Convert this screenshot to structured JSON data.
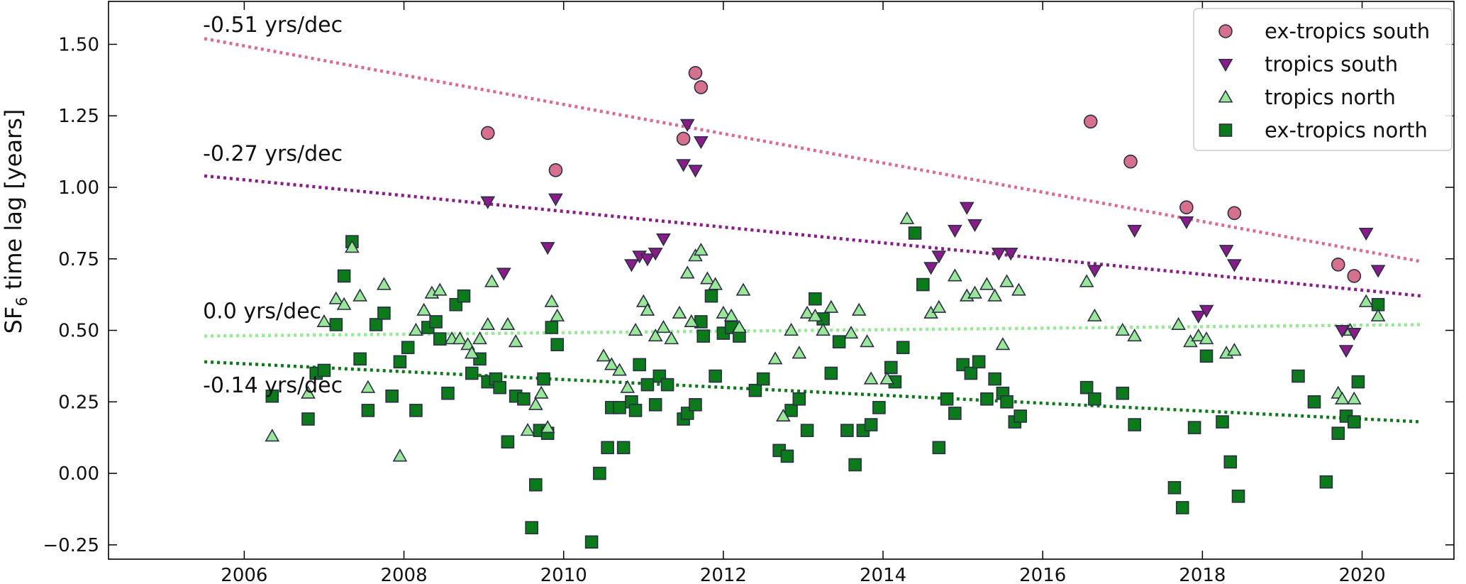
{
  "chart_data": {
    "type": "scatter",
    "ylabel": {
      "main": "SF",
      "sub": "6",
      "rest": " time lag [years]"
    },
    "xlim": [
      2004.3,
      2021.15
    ],
    "ylim": [
      -0.3,
      1.65
    ],
    "xticks": [
      2006,
      2008,
      2010,
      2012,
      2014,
      2016,
      2018,
      2020
    ],
    "yticks": [
      -0.25,
      0.0,
      0.25,
      0.5,
      0.75,
      1.0,
      1.25,
      1.5
    ],
    "ytick_labels": [
      "−0.25",
      "0.00",
      "0.25",
      "0.50",
      "0.75",
      "1.00",
      "1.25",
      "1.50"
    ],
    "legend_position": "top-right",
    "series": [
      {
        "name": "ex-tropics south",
        "marker": "circle",
        "color": "#d6708c",
        "points": [
          [
            2009.05,
            1.19
          ],
          [
            2009.9,
            1.06
          ],
          [
            2011.5,
            1.17
          ],
          [
            2011.65,
            1.4
          ],
          [
            2011.72,
            1.35
          ],
          [
            2016.6,
            1.23
          ],
          [
            2017.1,
            1.09
          ],
          [
            2017.8,
            0.93
          ],
          [
            2018.4,
            0.91
          ],
          [
            2019.7,
            0.73
          ],
          [
            2019.9,
            0.69
          ]
        ]
      },
      {
        "name": "tropics south",
        "marker": "triangle-down",
        "color": "#8b1a8b",
        "points": [
          [
            2009.05,
            0.95
          ],
          [
            2009.25,
            0.7
          ],
          [
            2009.8,
            0.79
          ],
          [
            2009.9,
            0.96
          ],
          [
            2010.85,
            0.73
          ],
          [
            2010.95,
            0.76
          ],
          [
            2011.05,
            0.75
          ],
          [
            2011.15,
            0.77
          ],
          [
            2011.25,
            0.82
          ],
          [
            2011.5,
            1.08
          ],
          [
            2011.55,
            1.22
          ],
          [
            2011.65,
            1.06
          ],
          [
            2011.72,
            1.16
          ],
          [
            2014.6,
            0.72
          ],
          [
            2014.7,
            0.76
          ],
          [
            2014.9,
            0.85
          ],
          [
            2015.05,
            0.93
          ],
          [
            2015.15,
            0.87
          ],
          [
            2015.45,
            0.77
          ],
          [
            2015.6,
            0.77
          ],
          [
            2016.65,
            0.71
          ],
          [
            2017.15,
            0.85
          ],
          [
            2017.8,
            0.88
          ],
          [
            2018.3,
            0.78
          ],
          [
            2018.4,
            0.73
          ],
          [
            2017.95,
            0.55
          ],
          [
            2018.05,
            0.57
          ],
          [
            2019.75,
            0.5
          ],
          [
            2019.8,
            0.43
          ],
          [
            2019.9,
            0.49
          ],
          [
            2020.05,
            0.84
          ],
          [
            2020.2,
            0.71
          ]
        ]
      },
      {
        "name": "tropics north",
        "marker": "triangle-up",
        "color": "#98e898",
        "points": [
          [
            2006.35,
            0.13
          ],
          [
            2006.8,
            0.28
          ],
          [
            2007.0,
            0.53
          ],
          [
            2007.15,
            0.61
          ],
          [
            2007.25,
            0.59
          ],
          [
            2007.35,
            0.79
          ],
          [
            2007.45,
            0.62
          ],
          [
            2007.55,
            0.3
          ],
          [
            2007.75,
            0.66
          ],
          [
            2007.95,
            0.06
          ],
          [
            2008.15,
            0.5
          ],
          [
            2008.25,
            0.57
          ],
          [
            2008.35,
            0.63
          ],
          [
            2008.45,
            0.64
          ],
          [
            2008.6,
            0.47
          ],
          [
            2008.7,
            0.47
          ],
          [
            2008.8,
            0.45
          ],
          [
            2008.85,
            0.42
          ],
          [
            2008.95,
            0.47
          ],
          [
            2009.05,
            0.52
          ],
          [
            2009.1,
            0.67
          ],
          [
            2009.3,
            0.52
          ],
          [
            2009.4,
            0.46
          ],
          [
            2009.55,
            0.15
          ],
          [
            2009.65,
            0.24
          ],
          [
            2009.72,
            0.28
          ],
          [
            2009.8,
            0.16
          ],
          [
            2009.85,
            0.6
          ],
          [
            2009.92,
            0.55
          ],
          [
            2010.5,
            0.41
          ],
          [
            2010.6,
            0.38
          ],
          [
            2010.7,
            0.36
          ],
          [
            2010.8,
            0.3
          ],
          [
            2010.9,
            0.5
          ],
          [
            2011.0,
            0.6
          ],
          [
            2011.05,
            0.57
          ],
          [
            2011.15,
            0.48
          ],
          [
            2011.25,
            0.51
          ],
          [
            2011.35,
            0.47
          ],
          [
            2011.45,
            0.56
          ],
          [
            2011.55,
            0.7
          ],
          [
            2011.6,
            0.53
          ],
          [
            2011.65,
            0.76
          ],
          [
            2011.72,
            0.78
          ],
          [
            2011.8,
            0.68
          ],
          [
            2011.9,
            0.66
          ],
          [
            2012.0,
            0.56
          ],
          [
            2012.1,
            0.55
          ],
          [
            2012.2,
            0.51
          ],
          [
            2012.25,
            0.64
          ],
          [
            2012.65,
            0.4
          ],
          [
            2012.75,
            0.2
          ],
          [
            2012.85,
            0.5
          ],
          [
            2012.95,
            0.42
          ],
          [
            2013.05,
            0.56
          ],
          [
            2013.15,
            0.55
          ],
          [
            2013.25,
            0.5
          ],
          [
            2013.35,
            0.58
          ],
          [
            2013.6,
            0.49
          ],
          [
            2013.7,
            0.57
          ],
          [
            2013.8,
            0.46
          ],
          [
            2013.85,
            0.33
          ],
          [
            2014.05,
            0.33
          ],
          [
            2014.3,
            0.89
          ],
          [
            2014.6,
            0.56
          ],
          [
            2014.7,
            0.58
          ],
          [
            2014.9,
            0.69
          ],
          [
            2015.05,
            0.62
          ],
          [
            2015.15,
            0.63
          ],
          [
            2015.3,
            0.66
          ],
          [
            2015.4,
            0.62
          ],
          [
            2015.5,
            0.45
          ],
          [
            2015.55,
            0.67
          ],
          [
            2015.7,
            0.64
          ],
          [
            2016.55,
            0.67
          ],
          [
            2016.65,
            0.55
          ],
          [
            2017.0,
            0.5
          ],
          [
            2017.15,
            0.48
          ],
          [
            2017.7,
            0.52
          ],
          [
            2017.85,
            0.46
          ],
          [
            2017.95,
            0.48
          ],
          [
            2018.05,
            0.47
          ],
          [
            2018.3,
            0.42
          ],
          [
            2018.4,
            0.43
          ],
          [
            2019.7,
            0.28
          ],
          [
            2019.75,
            0.26
          ],
          [
            2019.85,
            0.5
          ],
          [
            2019.9,
            0.26
          ],
          [
            2020.05,
            0.6
          ],
          [
            2020.2,
            0.55
          ]
        ]
      },
      {
        "name": "ex-tropics north",
        "marker": "square",
        "color": "#0b7a18",
        "points": [
          [
            2006.35,
            0.27
          ],
          [
            2006.8,
            0.19
          ],
          [
            2006.9,
            0.35
          ],
          [
            2007.0,
            0.36
          ],
          [
            2007.15,
            0.52
          ],
          [
            2007.25,
            0.69
          ],
          [
            2007.35,
            0.81
          ],
          [
            2007.45,
            0.4
          ],
          [
            2007.55,
            0.22
          ],
          [
            2007.65,
            0.52
          ],
          [
            2007.75,
            0.56
          ],
          [
            2007.85,
            0.27
          ],
          [
            2007.95,
            0.39
          ],
          [
            2008.05,
            0.44
          ],
          [
            2008.15,
            0.22
          ],
          [
            2008.3,
            0.51
          ],
          [
            2008.4,
            0.53
          ],
          [
            2008.45,
            0.47
          ],
          [
            2008.55,
            0.28
          ],
          [
            2008.65,
            0.59
          ],
          [
            2008.75,
            0.62
          ],
          [
            2008.85,
            0.35
          ],
          [
            2008.95,
            0.4
          ],
          [
            2009.05,
            0.32
          ],
          [
            2009.15,
            0.33
          ],
          [
            2009.2,
            0.3
          ],
          [
            2009.3,
            0.11
          ],
          [
            2009.4,
            0.27
          ],
          [
            2009.5,
            0.26
          ],
          [
            2009.6,
            -0.19
          ],
          [
            2009.65,
            -0.04
          ],
          [
            2009.7,
            0.15
          ],
          [
            2009.75,
            0.33
          ],
          [
            2009.8,
            0.14
          ],
          [
            2009.85,
            0.51
          ],
          [
            2009.92,
            0.45
          ],
          [
            2010.35,
            -0.24
          ],
          [
            2010.45,
            0.0
          ],
          [
            2010.55,
            0.09
          ],
          [
            2010.6,
            0.23
          ],
          [
            2010.7,
            0.23
          ],
          [
            2010.75,
            0.09
          ],
          [
            2010.85,
            0.25
          ],
          [
            2010.9,
            0.22
          ],
          [
            2010.95,
            0.38
          ],
          [
            2011.05,
            0.31
          ],
          [
            2011.15,
            0.24
          ],
          [
            2011.2,
            0.34
          ],
          [
            2011.3,
            0.31
          ],
          [
            2011.5,
            0.19
          ],
          [
            2011.55,
            0.21
          ],
          [
            2011.65,
            0.24
          ],
          [
            2011.72,
            0.53
          ],
          [
            2011.75,
            0.48
          ],
          [
            2011.85,
            0.62
          ],
          [
            2011.9,
            0.34
          ],
          [
            2012.0,
            0.49
          ],
          [
            2012.1,
            0.51
          ],
          [
            2012.2,
            0.48
          ],
          [
            2012.4,
            0.29
          ],
          [
            2012.5,
            0.33
          ],
          [
            2012.7,
            0.08
          ],
          [
            2012.8,
            0.06
          ],
          [
            2012.85,
            0.22
          ],
          [
            2012.95,
            0.26
          ],
          [
            2013.05,
            0.15
          ],
          [
            2013.15,
            0.61
          ],
          [
            2013.25,
            0.54
          ],
          [
            2013.35,
            0.35
          ],
          [
            2013.45,
            0.46
          ],
          [
            2013.55,
            0.15
          ],
          [
            2013.65,
            0.03
          ],
          [
            2013.75,
            0.15
          ],
          [
            2013.85,
            0.17
          ],
          [
            2013.95,
            0.23
          ],
          [
            2014.1,
            0.37
          ],
          [
            2014.15,
            0.32
          ],
          [
            2014.25,
            0.44
          ],
          [
            2014.4,
            0.84
          ],
          [
            2014.5,
            0.66
          ],
          [
            2014.7,
            0.09
          ],
          [
            2014.8,
            0.26
          ],
          [
            2014.9,
            0.21
          ],
          [
            2015.0,
            0.38
          ],
          [
            2015.1,
            0.35
          ],
          [
            2015.2,
            0.39
          ],
          [
            2015.3,
            0.26
          ],
          [
            2015.4,
            0.33
          ],
          [
            2015.5,
            0.28
          ],
          [
            2015.55,
            0.25
          ],
          [
            2015.65,
            0.18
          ],
          [
            2015.72,
            0.2
          ],
          [
            2016.55,
            0.3
          ],
          [
            2016.65,
            0.26
          ],
          [
            2017.0,
            0.28
          ],
          [
            2017.15,
            0.17
          ],
          [
            2017.65,
            -0.05
          ],
          [
            2017.75,
            -0.12
          ],
          [
            2017.9,
            0.16
          ],
          [
            2018.05,
            0.41
          ],
          [
            2018.25,
            0.18
          ],
          [
            2018.35,
            0.04
          ],
          [
            2018.45,
            -0.08
          ],
          [
            2019.2,
            0.34
          ],
          [
            2019.4,
            0.25
          ],
          [
            2019.55,
            -0.03
          ],
          [
            2019.7,
            0.14
          ],
          [
            2019.8,
            0.2
          ],
          [
            2019.9,
            0.18
          ],
          [
            2019.95,
            0.32
          ],
          [
            2020.2,
            0.59
          ]
        ]
      }
    ],
    "trend_lines": [
      {
        "name": "ex-tropics south trend",
        "color": "#e06890",
        "x": [
          2005.5,
          2020.75
        ],
        "y": [
          1.52,
          0.74
        ],
        "label": "-0.51 yrs/dec",
        "label_x": 2005.5,
        "label_y": 1.57
      },
      {
        "name": "tropics south trend",
        "color": "#8b1a8b",
        "x": [
          2005.5,
          2020.75
        ],
        "y": [
          1.04,
          0.62
        ],
        "label": "-0.27 yrs/dec",
        "label_x": 2005.5,
        "label_y": 1.12
      },
      {
        "name": "tropics north trend",
        "color": "#90ee90",
        "x": [
          2005.5,
          2020.75
        ],
        "y": [
          0.48,
          0.52
        ],
        "label": "0.0 yrs/dec",
        "label_x": 2005.5,
        "label_y": 0.57
      },
      {
        "name": "ex-tropics north trend",
        "color": "#0b7a18",
        "x": [
          2005.5,
          2020.75
        ],
        "y": [
          0.39,
          0.18
        ],
        "label": "-0.14 yrs/dec",
        "label_x": 2005.5,
        "label_y": 0.31
      }
    ]
  }
}
